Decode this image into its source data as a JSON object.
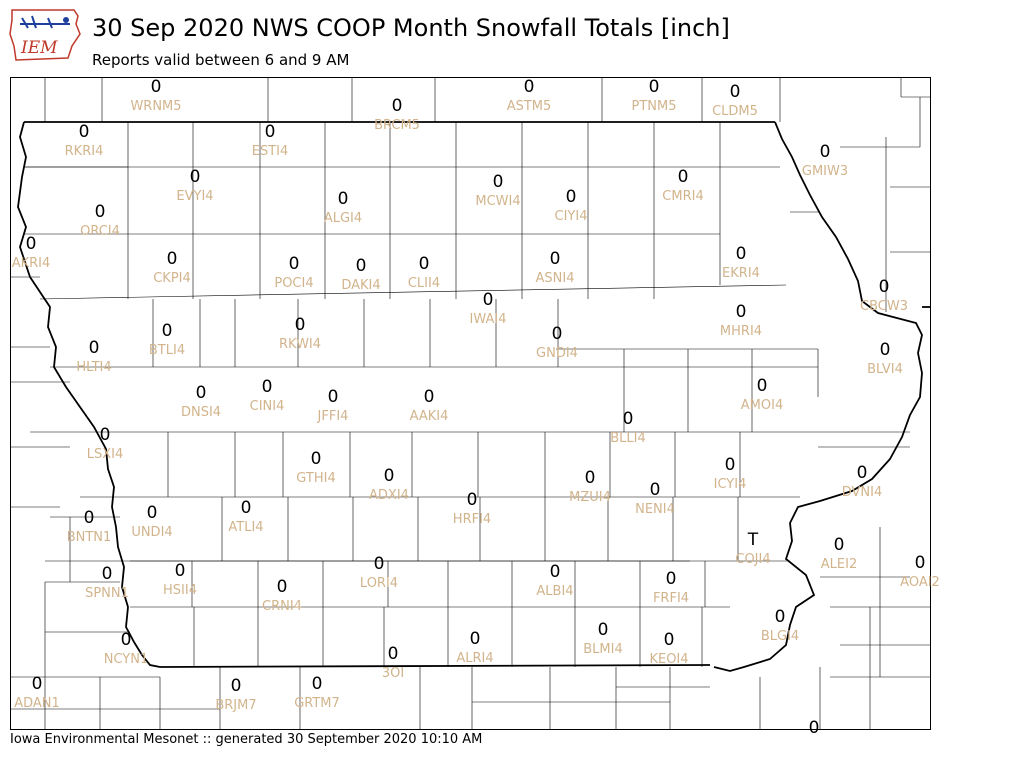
{
  "header": {
    "title": "30 Sep 2020 NWS COOP Month Snowfall Totals [inch]",
    "subtitle": "Reports valid between 6 and 9 AM"
  },
  "logo": {
    "text": "IEM",
    "icon": "iem-logo-icon"
  },
  "footer": {
    "text": "Iowa Environmental Mesonet :: generated 30 September 2020 10:10 AM"
  },
  "colors": {
    "station_label": "#d2b48c",
    "value": "#000000",
    "border": "#000000"
  },
  "stations": [
    {
      "id": "WRNM5",
      "value": "0"
    },
    {
      "id": "BRCM5",
      "value": "0"
    },
    {
      "id": "ASTM5",
      "value": "0"
    },
    {
      "id": "PTNM5",
      "value": "0"
    },
    {
      "id": "CLDM5",
      "value": "0"
    },
    {
      "id": "RKRI4",
      "value": "0"
    },
    {
      "id": "ESTI4",
      "value": "0"
    },
    {
      "id": "GMIW3",
      "value": "0"
    },
    {
      "id": "EVYI4",
      "value": "0"
    },
    {
      "id": "MCWI4",
      "value": "0"
    },
    {
      "id": "CMRI4",
      "value": "0"
    },
    {
      "id": "ALGI4",
      "value": "0"
    },
    {
      "id": "CIYI4",
      "value": "0"
    },
    {
      "id": "ORCI4",
      "value": "0"
    },
    {
      "id": "AKRI4",
      "value": "0"
    },
    {
      "id": "CKPI4",
      "value": "0"
    },
    {
      "id": "POCI4",
      "value": "0"
    },
    {
      "id": "DAKI4",
      "value": "0"
    },
    {
      "id": "CLII4",
      "value": "0"
    },
    {
      "id": "ASNI4",
      "value": "0"
    },
    {
      "id": "EKRI4",
      "value": "0"
    },
    {
      "id": "CBCW3",
      "value": "0"
    },
    {
      "id": "IWAI4",
      "value": "0"
    },
    {
      "id": "MHRI4",
      "value": "0"
    },
    {
      "id": "BTLI4",
      "value": "0"
    },
    {
      "id": "RKWI4",
      "value": "0"
    },
    {
      "id": "GNDI4",
      "value": "0"
    },
    {
      "id": "BLVI4",
      "value": "0"
    },
    {
      "id": "HLTI4",
      "value": "0"
    },
    {
      "id": "AMOI4",
      "value": "0"
    },
    {
      "id": "DNSI4",
      "value": "0"
    },
    {
      "id": "CINI4",
      "value": "0"
    },
    {
      "id": "JFFI4",
      "value": "0"
    },
    {
      "id": "AAKI4",
      "value": "0"
    },
    {
      "id": "BLLI4",
      "value": "0"
    },
    {
      "id": "LSXI4",
      "value": "0"
    },
    {
      "id": "ICYI4",
      "value": "0"
    },
    {
      "id": "GTHI4",
      "value": "0"
    },
    {
      "id": "ADXI4",
      "value": "0"
    },
    {
      "id": "MZUI4",
      "value": "0"
    },
    {
      "id": "DVNI4",
      "value": "0"
    },
    {
      "id": "HRFI4",
      "value": "0"
    },
    {
      "id": "NENI4",
      "value": "0"
    },
    {
      "id": "ATLI4",
      "value": "0"
    },
    {
      "id": "UNDI4",
      "value": "0"
    },
    {
      "id": "BNTN1",
      "value": "0"
    },
    {
      "id": "COJI4",
      "value": "T"
    },
    {
      "id": "ALEI2",
      "value": "0"
    },
    {
      "id": "LORI4",
      "value": "0"
    },
    {
      "id": "AOAI2",
      "value": "0"
    },
    {
      "id": "HSII4",
      "value": "0"
    },
    {
      "id": "ALBI4",
      "value": "0"
    },
    {
      "id": "SPNN1",
      "value": "0"
    },
    {
      "id": "FRFI4",
      "value": "0"
    },
    {
      "id": "CRNI4",
      "value": "0"
    },
    {
      "id": "BLGI4",
      "value": "0"
    },
    {
      "id": "BLMI4",
      "value": "0"
    },
    {
      "id": "NCYN1",
      "value": "0"
    },
    {
      "id": "ALRI4",
      "value": "0"
    },
    {
      "id": "KEOI4",
      "value": "0"
    },
    {
      "id": "3OI",
      "value": "0"
    },
    {
      "id": "ADAN1",
      "value": "0"
    },
    {
      "id": "BRJM7",
      "value": "0"
    },
    {
      "id": "GRTM7",
      "value": "0"
    },
    {
      "id": "",
      "value": "0"
    }
  ]
}
